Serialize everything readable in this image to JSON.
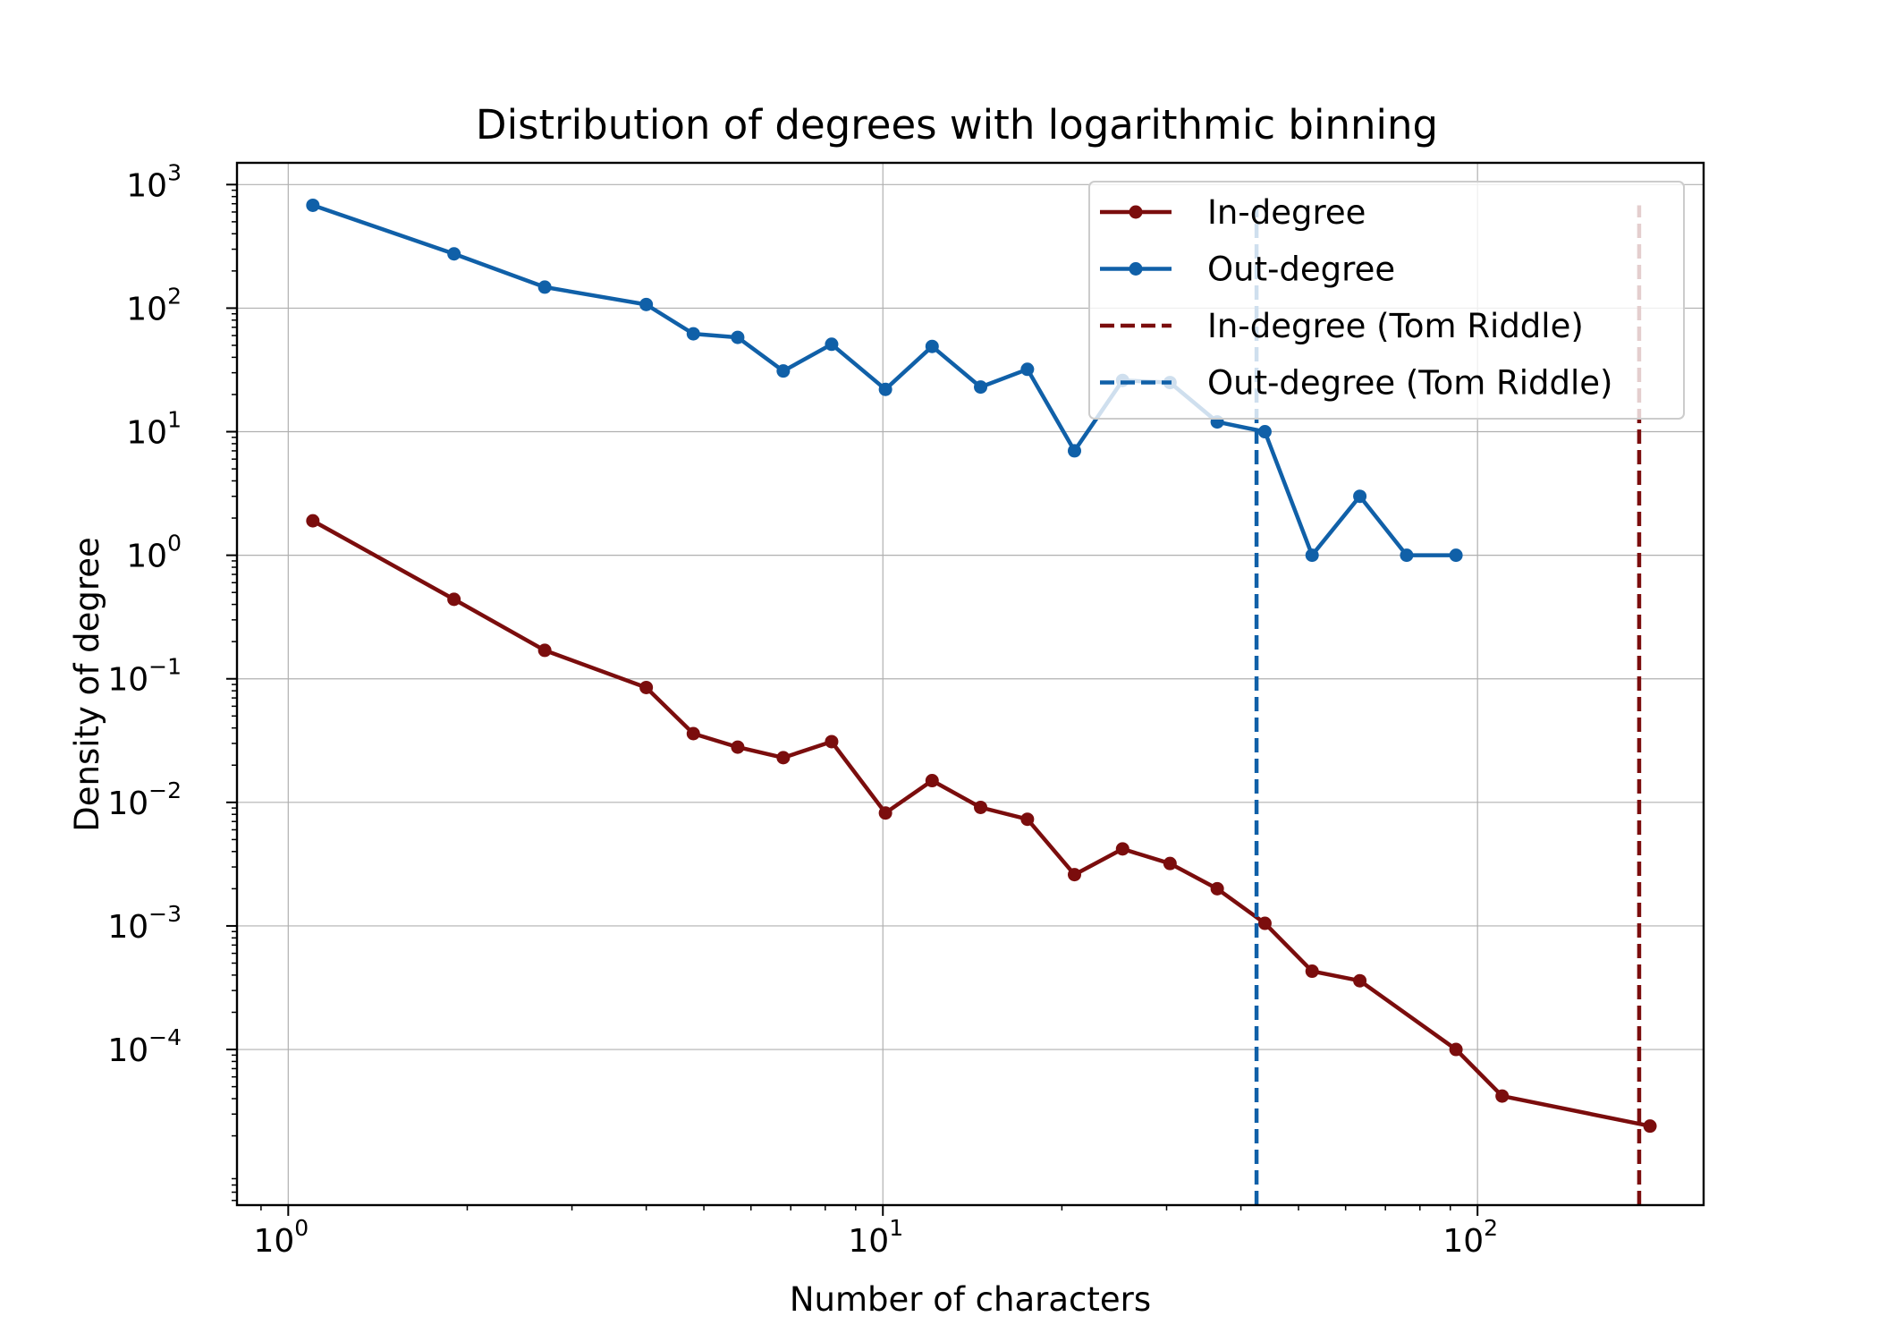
{
  "chart_data": {
    "type": "line",
    "title": "Distribution of degrees with logarithmic binning",
    "xlabel": "Number of characters",
    "ylabel": "Density of degree",
    "xscale": "log",
    "yscale": "log",
    "xlim": [
      0.82,
      240
    ],
    "ylim": [
      5.5e-06,
      1500
    ],
    "grid": true,
    "legend_position": "top-right",
    "x_ticks": [
      {
        "value": 1,
        "base": "10",
        "exp": "0"
      },
      {
        "value": 10,
        "base": "10",
        "exp": "1"
      },
      {
        "value": 100,
        "base": "10",
        "exp": "2"
      }
    ],
    "y_ticks": [
      {
        "value": 1000,
        "base": "10",
        "exp": "3"
      },
      {
        "value": 100,
        "base": "10",
        "exp": "2"
      },
      {
        "value": 10,
        "base": "10",
        "exp": "1"
      },
      {
        "value": 1,
        "base": "10",
        "exp": "0"
      },
      {
        "value": 0.1,
        "base": "10",
        "exp": "−1"
      },
      {
        "value": 0.01,
        "base": "10",
        "exp": "−2"
      },
      {
        "value": 0.001,
        "base": "10",
        "exp": "−3"
      },
      {
        "value": 0.0001,
        "base": "10",
        "exp": "−4"
      }
    ],
    "series": [
      {
        "name": "In-degree",
        "color": "#7b0d0d",
        "style": "line-marker",
        "x": [
          1.1,
          1.9,
          2.7,
          4.0,
          4.8,
          5.7,
          6.8,
          8.2,
          10.1,
          12.1,
          14.6,
          17.5,
          21.0,
          25.3,
          30.4,
          36.5,
          43.9,
          52.7,
          63.4,
          92.0,
          110.0,
          195.0
        ],
        "y": [
          1.9,
          0.44,
          0.17,
          0.085,
          0.036,
          0.028,
          0.023,
          0.031,
          0.0082,
          0.015,
          0.0091,
          0.0073,
          0.0026,
          0.0042,
          0.0032,
          0.002,
          0.00105,
          0.00043,
          0.00036,
          0.0001,
          4.2e-05,
          2.4e-05
        ]
      },
      {
        "name": "Out-degree",
        "color": "#1060a8",
        "style": "line-marker",
        "x": [
          1.1,
          1.9,
          2.7,
          4.0,
          4.8,
          5.7,
          6.8,
          8.2,
          10.1,
          12.1,
          14.6,
          17.5,
          21.0,
          25.3,
          30.4,
          36.5,
          43.9,
          52.7,
          63.4,
          76.0,
          92.0
        ],
        "y": [
          680,
          275,
          148,
          107,
          62,
          58,
          31,
          51,
          22,
          49,
          23,
          32,
          7,
          26,
          25,
          12,
          10,
          1,
          3,
          1,
          1
        ]
      },
      {
        "name": "In-degree (Tom Riddle)",
        "color": "#7b0d0d",
        "style": "dashed-vline",
        "x": 187,
        "y_range": [
          5.5e-06,
          680
        ]
      },
      {
        "name": "Out-degree (Tom Riddle)",
        "color": "#1060a8",
        "style": "dashed-vline",
        "x": 42.5,
        "y_range": [
          5.5e-06,
          680
        ]
      }
    ]
  }
}
